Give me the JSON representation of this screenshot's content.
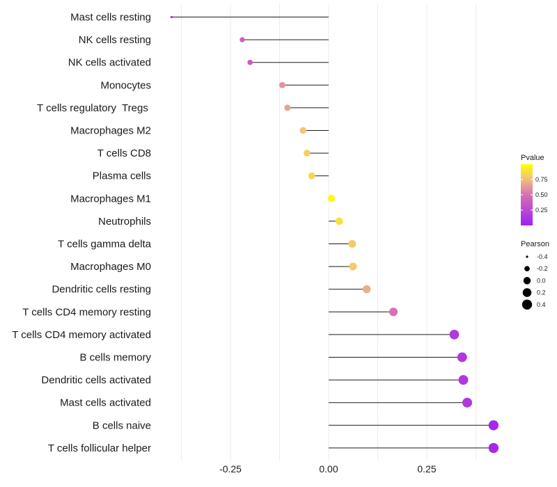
{
  "chart_data": {
    "type": "lollipop",
    "title": "",
    "xlabel": "",
    "ylabel": "",
    "xlim": [
      -0.4,
      0.45
    ],
    "x_ticks": [
      {
        "value": -0.25,
        "label": "-0.25"
      },
      {
        "value": 0,
        "label": "0.00"
      },
      {
        "value": 0.25,
        "label": "0.25"
      }
    ],
    "grid_values": [
      -0.375,
      -0.25,
      -0.125,
      0,
      0.125,
      0.25,
      0.375
    ],
    "categories": [
      "Mast cells resting",
      "NK cells resting",
      "NK cells activated",
      "Monocytes",
      "T cells regulatory  Tregs ",
      "Macrophages M2",
      "T cells CD8",
      "Plasma cells",
      "Macrophages M1",
      "Neutrophils",
      "T cells gamma delta",
      "Macrophages M0",
      "Dendritic cells resting",
      "T cells CD4 memory resting",
      "T cells CD4 memory activated",
      "B cells memory",
      "Dendritic cells activated",
      "Mast cells activated",
      "B cells naive",
      "T cells follicular helper"
    ],
    "pearson": [
      -0.4,
      -0.22,
      -0.2,
      -0.118,
      -0.105,
      -0.065,
      -0.055,
      -0.043,
      0.007,
      0.027,
      0.06,
      0.062,
      0.097,
      0.165,
      0.32,
      0.34,
      0.343,
      0.353,
      0.42,
      0.42
    ],
    "pvalue": [
      0.05,
      0.4,
      0.38,
      0.62,
      0.66,
      0.78,
      0.82,
      0.85,
      0.98,
      0.88,
      0.8,
      0.8,
      0.7,
      0.5,
      0.15,
      0.15,
      0.15,
      0.15,
      0.05,
      0.05
    ],
    "legend_pvalue": {
      "title": "Pvalue",
      "range": [
        0,
        1
      ],
      "low_color": "#a020f0",
      "high_color": "#ffff00",
      "breaks": [
        {
          "value": 0.75,
          "label": "0.75"
        },
        {
          "value": 0.5,
          "label": "0.50"
        },
        {
          "value": 0.25,
          "label": "0.25"
        }
      ]
    },
    "legend_pearson": {
      "title": "Pearson",
      "breaks": [
        {
          "value": -0.4,
          "label": "-0.4"
        },
        {
          "value": -0.2,
          "label": "-0.2"
        },
        {
          "value": 0,
          "label": "0.0"
        },
        {
          "value": 0.2,
          "label": "0.2"
        },
        {
          "value": 0.4,
          "label": "0.4"
        }
      ],
      "color": "#000000"
    }
  }
}
